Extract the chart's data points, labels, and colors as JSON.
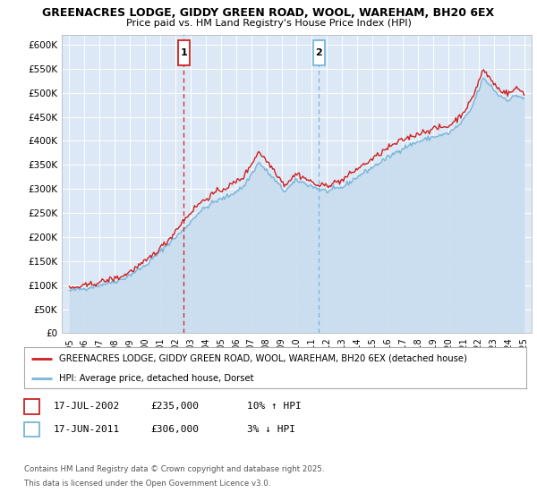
{
  "title_line1": "GREENACRES LODGE, GIDDY GREEN ROAD, WOOL, WAREHAM, BH20 6EX",
  "title_line2": "Price paid vs. HM Land Registry's House Price Index (HPI)",
  "ylabel_ticks": [
    "£0",
    "£50K",
    "£100K",
    "£150K",
    "£200K",
    "£250K",
    "£300K",
    "£350K",
    "£400K",
    "£450K",
    "£500K",
    "£550K",
    "£600K"
  ],
  "ytick_values": [
    0,
    50000,
    100000,
    150000,
    200000,
    250000,
    300000,
    350000,
    400000,
    450000,
    500000,
    550000,
    600000
  ],
  "ylim": [
    0,
    620000
  ],
  "xlim_start": 1994.5,
  "xlim_end": 2025.5,
  "xtick_years": [
    1995,
    1996,
    1997,
    1998,
    1999,
    2000,
    2001,
    2002,
    2003,
    2004,
    2005,
    2006,
    2007,
    2008,
    2009,
    2010,
    2011,
    2012,
    2013,
    2014,
    2015,
    2016,
    2017,
    2018,
    2019,
    2020,
    2021,
    2022,
    2023,
    2024,
    2025
  ],
  "hpi_color": "#7ab5d8",
  "price_color": "#cc2222",
  "hpi_fill_color": "#c8ddf0",
  "vline1_x": 2002.54,
  "vline2_x": 2011.46,
  "vline1_color": "#cc2222",
  "vline2_color": "#7ab5d8",
  "sale1_date": "17-JUL-2002",
  "sale1_price": "£235,000",
  "sale1_pct": "10% ↑ HPI",
  "sale2_date": "17-JUN-2011",
  "sale2_price": "£306,000",
  "sale2_pct": "3% ↓ HPI",
  "legend_property": "GREENACRES LODGE, GIDDY GREEN ROAD, WOOL, WAREHAM, BH20 6EX (detached house)",
  "legend_hpi": "HPI: Average price, detached house, Dorset",
  "footnote_line1": "Contains HM Land Registry data © Crown copyright and database right 2025.",
  "footnote_line2": "This data is licensed under the Open Government Licence v3.0.",
  "plot_bg": "#dce8f5"
}
